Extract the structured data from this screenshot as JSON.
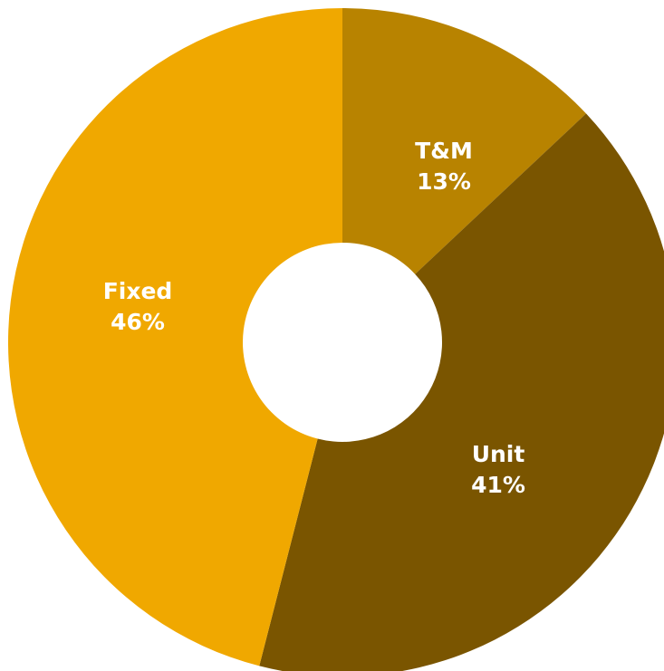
{
  "chart_data": {
    "type": "donut",
    "categories": [
      "T&M",
      "Unit",
      "Fixed"
    ],
    "values": [
      13,
      41,
      46
    ],
    "value_labels": [
      "13%",
      "41%",
      "46%"
    ],
    "colors": [
      "#b88300",
      "#7a5500",
      "#f0a800"
    ]
  }
}
